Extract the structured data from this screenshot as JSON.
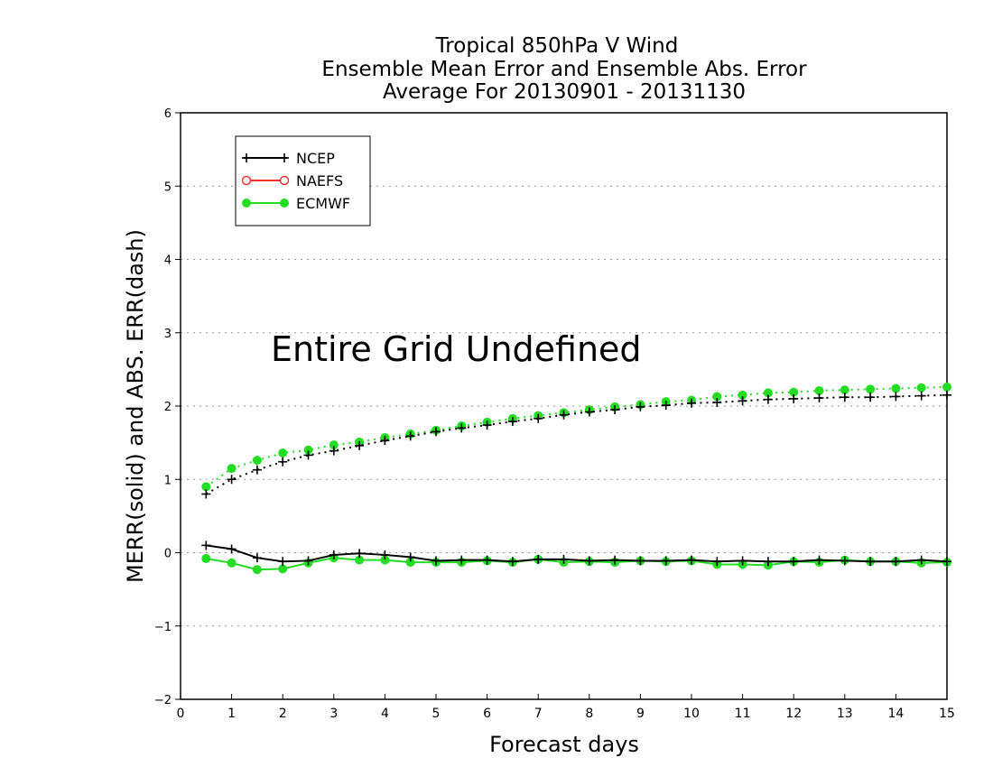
{
  "chart_data": {
    "type": "line",
    "title": [
      "Tropical 850hPa V Wind",
      "Ensemble Mean Error and Ensemble Abs. Error",
      "Average For 20130901 - 20131130"
    ],
    "xlabel": "Forecast days",
    "ylabel": "MERR(solid) and ABS. ERR(dash)",
    "xlim": [
      0,
      15
    ],
    "ylim": [
      -2,
      6
    ],
    "xticks": [
      "0",
      "1",
      "2",
      "3",
      "4",
      "5",
      "6",
      "7",
      "8",
      "9",
      "10",
      "11",
      "12",
      "13",
      "14",
      "15"
    ],
    "yticks": [
      "−2",
      "−1",
      "0",
      "1",
      "2",
      "3",
      "4",
      "5",
      "6"
    ],
    "grid": "dotted horizontal",
    "legend_position": "top-left",
    "annotation": "Entire Grid Undefined",
    "x": [
      0.5,
      1,
      1.5,
      2,
      2.5,
      3,
      3.5,
      4,
      4.5,
      5,
      5.5,
      6,
      6.5,
      7,
      7.5,
      8,
      8.5,
      9,
      9.5,
      10,
      10.5,
      11,
      11.5,
      12,
      12.5,
      13,
      13.5,
      14,
      14.5,
      15
    ],
    "series": [
      {
        "name": "NCEP",
        "color": "#000000",
        "marker": "plus",
        "merr": [
          0.1,
          0.05,
          -0.07,
          -0.12,
          -0.11,
          -0.03,
          -0.01,
          -0.03,
          -0.06,
          -0.11,
          -0.1,
          -0.1,
          -0.12,
          -0.09,
          -0.09,
          -0.11,
          -0.1,
          -0.11,
          -0.11,
          -0.1,
          -0.12,
          -0.11,
          -0.12,
          -0.12,
          -0.1,
          -0.11,
          -0.12,
          -0.12,
          -0.1,
          -0.12
        ],
        "abs_err": [
          0.8,
          1.0,
          1.13,
          1.24,
          1.33,
          1.39,
          1.46,
          1.53,
          1.59,
          1.65,
          1.7,
          1.74,
          1.79,
          1.83,
          1.88,
          1.92,
          1.95,
          1.99,
          2.01,
          2.04,
          2.05,
          2.07,
          2.09,
          2.1,
          2.11,
          2.12,
          2.12,
          2.13,
          2.14,
          2.15
        ]
      },
      {
        "name": "NAEFS",
        "color": "#ff3030",
        "marker": "open-circle",
        "merr": [],
        "abs_err": []
      },
      {
        "name": "ECMWF",
        "color": "#22dd22",
        "marker": "filled-circle",
        "merr": [
          -0.08,
          -0.14,
          -0.23,
          -0.22,
          -0.14,
          -0.07,
          -0.1,
          -0.1,
          -0.13,
          -0.13,
          -0.13,
          -0.11,
          -0.13,
          -0.09,
          -0.13,
          -0.12,
          -0.13,
          -0.11,
          -0.12,
          -0.11,
          -0.16,
          -0.16,
          -0.17,
          -0.12,
          -0.13,
          -0.1,
          -0.12,
          -0.12,
          -0.14,
          -0.13
        ],
        "abs_err": [
          0.9,
          1.15,
          1.26,
          1.36,
          1.4,
          1.47,
          1.51,
          1.57,
          1.62,
          1.67,
          1.73,
          1.78,
          1.83,
          1.87,
          1.91,
          1.95,
          1.99,
          2.02,
          2.06,
          2.08,
          2.13,
          2.15,
          2.18,
          2.19,
          2.21,
          2.22,
          2.23,
          2.24,
          2.25,
          2.26
        ]
      }
    ]
  }
}
